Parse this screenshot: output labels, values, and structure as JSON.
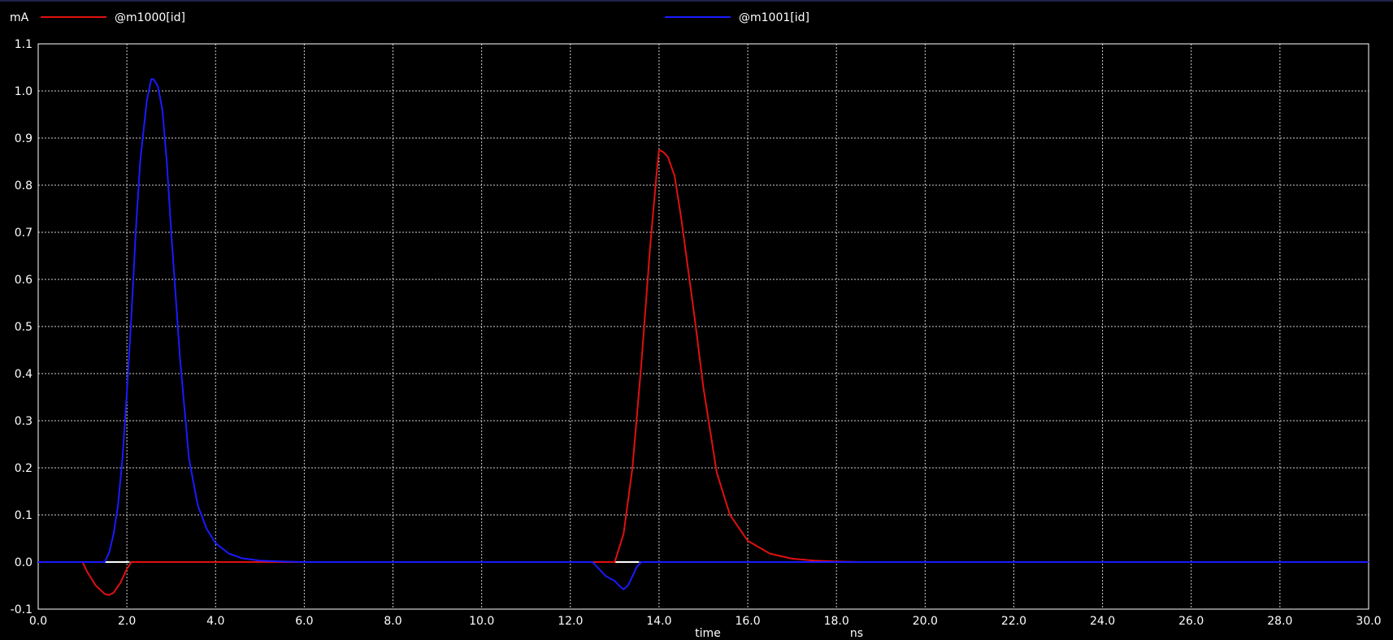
{
  "colors": {
    "background": "#000000",
    "grid": "#d0d0d0",
    "axis": "#ffffff",
    "text": "#ffffff",
    "series_red": "#e01010",
    "series_blue": "#1a1aff"
  },
  "chart_data": {
    "type": "line",
    "title": "",
    "xlabel": "time",
    "xunit": "ns",
    "ylabel": "mA",
    "xlim": [
      0.0,
      30.0
    ],
    "ylim": [
      -0.1,
      1.1
    ],
    "grid": true,
    "legend_position": "top",
    "x_ticks": [
      "0.0",
      "2.0",
      "4.0",
      "6.0",
      "8.0",
      "10.0",
      "12.0",
      "14.0",
      "16.0",
      "18.0",
      "20.0",
      "22.0",
      "24.0",
      "26.0",
      "28.0",
      "30.0"
    ],
    "y_ticks": [
      "-0.1",
      "0.0",
      "0.1",
      "0.2",
      "0.3",
      "0.4",
      "0.5",
      "0.6",
      "0.7",
      "0.8",
      "0.9",
      "1.0",
      "1.1"
    ],
    "series": [
      {
        "name": "@m1000[id]",
        "color": "#e01010",
        "x": [
          0.0,
          1.0,
          1.1,
          1.3,
          1.5,
          1.6,
          1.7,
          1.85,
          2.0,
          2.1,
          4.0,
          12.0,
          12.5,
          13.0,
          13.2,
          13.4,
          13.6,
          13.8,
          13.95,
          14.0,
          14.1,
          14.2,
          14.35,
          14.5,
          14.8,
          15.0,
          15.3,
          15.6,
          16.0,
          16.5,
          17.0,
          17.5,
          18.0,
          18.5,
          20.0,
          25.0,
          30.0
        ],
        "y": [
          0.0,
          0.0,
          -0.02,
          -0.05,
          -0.068,
          -0.07,
          -0.065,
          -0.045,
          -0.015,
          0.0,
          0.0,
          0.0,
          0.0,
          0.0,
          0.06,
          0.2,
          0.42,
          0.67,
          0.83,
          0.875,
          0.87,
          0.86,
          0.82,
          0.73,
          0.52,
          0.37,
          0.19,
          0.1,
          0.045,
          0.018,
          0.007,
          0.003,
          0.001,
          0.0,
          0.0,
          0.0,
          0.0
        ]
      },
      {
        "name": "@m1001[id]",
        "color": "#1a1aff",
        "x": [
          0.0,
          1.5,
          1.6,
          1.7,
          1.8,
          1.9,
          2.0,
          2.1,
          2.2,
          2.3,
          2.45,
          2.55,
          2.6,
          2.7,
          2.8,
          2.9,
          3.0,
          3.2,
          3.4,
          3.6,
          3.8,
          4.0,
          4.3,
          4.6,
          5.0,
          5.5,
          6.0,
          12.0,
          12.5,
          12.6,
          12.8,
          13.0,
          13.1,
          13.2,
          13.3,
          13.4,
          13.5,
          13.6,
          14.0,
          20.0,
          30.0
        ],
        "y": [
          0.0,
          0.0,
          0.02,
          0.06,
          0.12,
          0.22,
          0.36,
          0.52,
          0.7,
          0.85,
          0.98,
          1.025,
          1.025,
          1.01,
          0.96,
          0.85,
          0.7,
          0.43,
          0.22,
          0.12,
          0.07,
          0.04,
          0.018,
          0.008,
          0.003,
          0.001,
          0.0,
          0.0,
          0.0,
          -0.01,
          -0.03,
          -0.04,
          -0.05,
          -0.058,
          -0.05,
          -0.03,
          -0.01,
          0.0,
          0.0,
          0.0,
          0.0
        ]
      }
    ],
    "baseline_markers": [
      {
        "x_start": 1.45,
        "x_end": 2.05,
        "y": 0.0,
        "color": "#ffffff"
      },
      {
        "x_start": 13.0,
        "x_end": 13.55,
        "y": 0.0,
        "color": "#ffffff"
      }
    ]
  }
}
